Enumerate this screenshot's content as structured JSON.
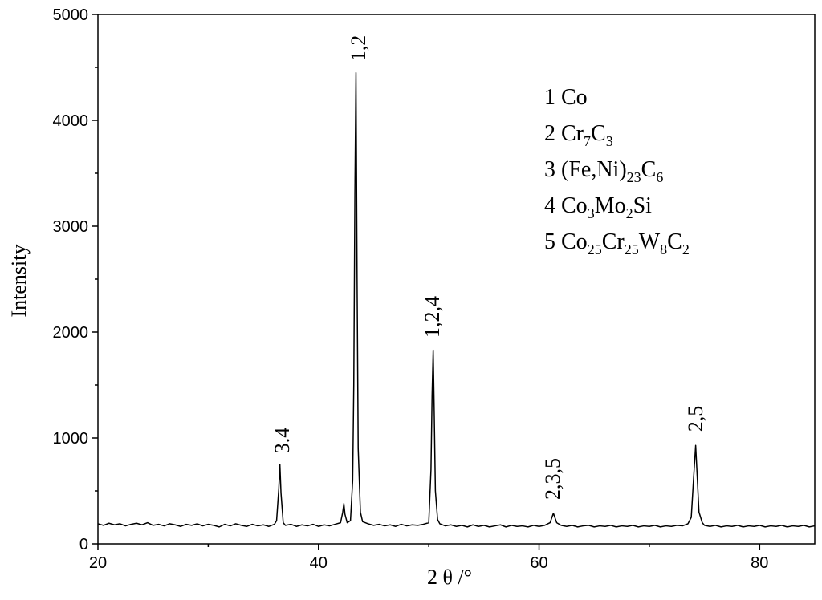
{
  "chart_data": {
    "type": "line",
    "x_label": "2 θ /°",
    "y_label": "Intensity",
    "xlim": [
      20,
      85
    ],
    "ylim": [
      0,
      5000
    ],
    "xticks": [
      20,
      40,
      60,
      80
    ],
    "yticks": [
      0,
      1000,
      2000,
      3000,
      4000,
      5000
    ],
    "x_minor_ticks": [
      30,
      50,
      70
    ],
    "y_minor_ticks": [
      500,
      1500,
      2500,
      3500,
      4500
    ],
    "x": [
      20,
      20.5,
      21,
      21.5,
      22,
      22.5,
      23,
      23.5,
      24,
      24.5,
      25,
      25.5,
      26,
      26.5,
      27,
      27.5,
      28,
      28.5,
      29,
      29.5,
      30,
      30.5,
      31,
      31.5,
      32,
      32.5,
      33,
      33.5,
      34,
      34.5,
      35,
      35.5,
      36,
      36.2,
      36.4,
      36.5,
      36.6,
      36.8,
      37,
      37.5,
      38,
      38.5,
      39,
      39.5,
      40,
      40.5,
      41,
      41.5,
      42,
      42.2,
      42.3,
      42.4,
      42.6,
      42.9,
      43.1,
      43.2,
      43.3,
      43.4,
      43.5,
      43.6,
      43.8,
      44,
      44.5,
      45,
      45.5,
      46,
      46.5,
      47,
      47.5,
      48,
      48.5,
      49,
      49.5,
      50,
      50.2,
      50.3,
      50.4,
      50.5,
      50.6,
      50.8,
      51,
      51.5,
      52,
      52.5,
      53,
      53.5,
      54,
      54.5,
      55,
      55.5,
      56,
      56.5,
      57,
      57.5,
      58,
      58.5,
      59,
      59.5,
      60,
      60.5,
      61,
      61.3,
      61.6,
      62,
      62.5,
      63,
      63.5,
      64,
      64.5,
      65,
      65.5,
      66,
      66.5,
      67,
      67.5,
      68,
      68.5,
      69,
      69.5,
      70,
      70.5,
      71,
      71.5,
      72,
      72.5,
      73,
      73.5,
      73.8,
      74,
      74.2,
      74.3,
      74.5,
      74.8,
      75,
      75.5,
      76,
      76.5,
      77,
      77.5,
      78,
      78.5,
      79,
      79.5,
      80,
      80.5,
      81,
      81.5,
      82,
      82.5,
      83,
      83.5,
      84,
      84.5,
      85
    ],
    "series": [
      {
        "color": "#000000",
        "values": [
          190,
          175,
          195,
          180,
          190,
          170,
          185,
          195,
          180,
          200,
          175,
          185,
          170,
          190,
          180,
          165,
          185,
          175,
          190,
          170,
          185,
          175,
          160,
          185,
          170,
          190,
          175,
          165,
          185,
          170,
          180,
          165,
          185,
          220,
          520,
          750,
          480,
          200,
          175,
          185,
          165,
          180,
          170,
          185,
          165,
          180,
          170,
          185,
          200,
          300,
          380,
          280,
          200,
          220,
          600,
          1500,
          3300,
          4450,
          2500,
          900,
          300,
          210,
          190,
          175,
          185,
          170,
          180,
          165,
          185,
          170,
          180,
          175,
          185,
          200,
          700,
          1400,
          1830,
          1200,
          500,
          230,
          190,
          170,
          180,
          165,
          175,
          160,
          180,
          165,
          175,
          160,
          170,
          180,
          160,
          175,
          165,
          170,
          160,
          175,
          165,
          175,
          200,
          290,
          200,
          175,
          165,
          175,
          160,
          170,
          175,
          160,
          170,
          165,
          175,
          160,
          170,
          165,
          175,
          160,
          170,
          165,
          175,
          160,
          170,
          165,
          175,
          170,
          190,
          250,
          600,
          930,
          720,
          300,
          200,
          175,
          165,
          175,
          160,
          170,
          165,
          175,
          160,
          170,
          165,
          175,
          160,
          170,
          165,
          175,
          160,
          170,
          165,
          175,
          160,
          170
        ]
      }
    ],
    "annotations": [
      "3.4",
      "1,2",
      "1,2,4",
      "2,3,5",
      "2,5"
    ],
    "legend_items": [
      [
        "1 Co"
      ],
      [
        "2 Cr",
        "7",
        "C",
        "3"
      ],
      [
        "3 (Fe,Ni)",
        "23",
        "C",
        "6"
      ],
      [
        "4 Co",
        "3",
        "Mo",
        "2",
        "Si"
      ],
      [
        "5 Co",
        "25",
        "Cr",
        "25",
        "W",
        "8",
        "C",
        "2"
      ]
    ]
  }
}
